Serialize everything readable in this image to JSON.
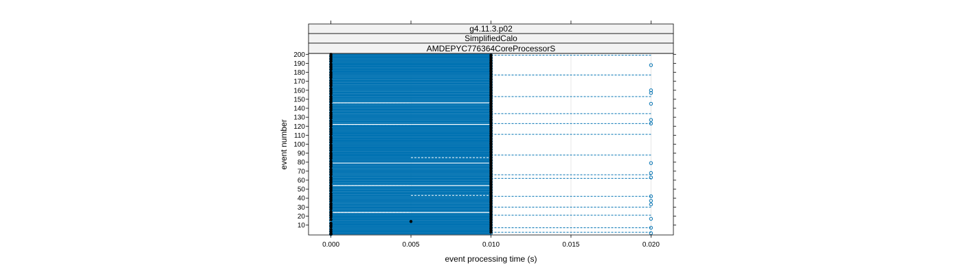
{
  "chart_data": {
    "type": "scatter",
    "strips": [
      "g4.11.3.p02",
      "SimplifiedCalo",
      "AMDEPYC776364CoreProcessorS"
    ],
    "xlabel": "event processing time (s)",
    "ylabel": "event number",
    "xlim": [
      -0.0014,
      0.0214
    ],
    "ylim": [
      -1,
      201
    ],
    "x_ticks": [
      0.0,
      0.005,
      0.01,
      0.015,
      0.02
    ],
    "x_tick_labels": [
      "0.000",
      "0.005",
      "0.010",
      "0.015",
      "0.020"
    ],
    "y_ticks": [
      10,
      20,
      30,
      40,
      50,
      60,
      70,
      80,
      90,
      100,
      110,
      120,
      130,
      140,
      150,
      160,
      170,
      180,
      190,
      200
    ],
    "y_tick_labels": [
      "10",
      "20",
      "30",
      "40",
      "50",
      "60",
      "70",
      "80",
      "90",
      "100",
      "110",
      "120",
      "130",
      "140",
      "150",
      "160",
      "170",
      "180",
      "190",
      "200"
    ],
    "grid": true,
    "colors": {
      "series": "#0072B2",
      "points": "#000000",
      "strip_bg": "#f2f2f2",
      "grid": "#e6e6e6"
    },
    "series": [
      {
        "name": "",
        "marker": "filled-black",
        "note_values": "filled points: event number -> processing time (s)",
        "points": [
          [
            0,
            0.0
          ],
          [
            1,
            0.0
          ],
          [
            2,
            0.01
          ],
          [
            3,
            0.0
          ],
          [
            4,
            0.01
          ],
          [
            5,
            0.0
          ],
          [
            6,
            0.01
          ],
          [
            7,
            0.01
          ],
          [
            8,
            0.0
          ],
          [
            9,
            0.01
          ],
          [
            10,
            0.0
          ],
          [
            11,
            0.01
          ],
          [
            12,
            0.0
          ],
          [
            13,
            0.01
          ],
          [
            14,
            0.005
          ],
          [
            15,
            0.01
          ],
          [
            16,
            0.0
          ],
          [
            17,
            0.01
          ],
          [
            18,
            0.01
          ],
          [
            19,
            0.0
          ],
          [
            20,
            0.01
          ],
          [
            21,
            0.0
          ],
          [
            22,
            0.01
          ],
          [
            23,
            0.0
          ],
          [
            24,
            0.01
          ],
          [
            25,
            0.0
          ],
          [
            26,
            0.01
          ],
          [
            27,
            0.01
          ],
          [
            28,
            0.0
          ],
          [
            29,
            0.01
          ],
          [
            30,
            0.0
          ],
          [
            31,
            0.01
          ],
          [
            32,
            0.0
          ],
          [
            33,
            0.01
          ],
          [
            34,
            0.0
          ],
          [
            35,
            0.01
          ],
          [
            36,
            0.01
          ],
          [
            37,
            0.0
          ],
          [
            38,
            0.01
          ],
          [
            39,
            0.0
          ],
          [
            40,
            0.01
          ],
          [
            41,
            0.0
          ],
          [
            42,
            0.01
          ],
          [
            43,
            0.0
          ],
          [
            44,
            0.01
          ],
          [
            45,
            0.0
          ],
          [
            46,
            0.01
          ],
          [
            47,
            0.01
          ],
          [
            48,
            0.0
          ],
          [
            49,
            0.01
          ],
          [
            50,
            0.0
          ],
          [
            51,
            0.01
          ],
          [
            52,
            0.0
          ],
          [
            53,
            0.01
          ],
          [
            54,
            0.0
          ],
          [
            55,
            0.01
          ],
          [
            56,
            0.01
          ],
          [
            57,
            0.0
          ],
          [
            58,
            0.01
          ],
          [
            59,
            0.0
          ],
          [
            60,
            0.01
          ],
          [
            61,
            0.0
          ],
          [
            62,
            0.01
          ],
          [
            63,
            0.0
          ],
          [
            64,
            0.01
          ],
          [
            65,
            0.01
          ],
          [
            66,
            0.0
          ],
          [
            67,
            0.01
          ],
          [
            68,
            0.0
          ],
          [
            69,
            0.01
          ],
          [
            70,
            0.0
          ],
          [
            71,
            0.01
          ],
          [
            72,
            0.0
          ],
          [
            73,
            0.01
          ],
          [
            74,
            0.01
          ],
          [
            75,
            0.0
          ],
          [
            76,
            0.01
          ],
          [
            77,
            0.0
          ],
          [
            78,
            0.01
          ],
          [
            79,
            0.0
          ],
          [
            80,
            0.01
          ],
          [
            81,
            0.0
          ],
          [
            82,
            0.01
          ],
          [
            83,
            0.01
          ],
          [
            84,
            0.0
          ],
          [
            85,
            0.01
          ],
          [
            86,
            0.0
          ],
          [
            87,
            0.01
          ],
          [
            88,
            0.0
          ],
          [
            89,
            0.01
          ],
          [
            90,
            0.0
          ],
          [
            91,
            0.01
          ],
          [
            92,
            0.01
          ],
          [
            93,
            0.0
          ],
          [
            94,
            0.01
          ],
          [
            95,
            0.0
          ],
          [
            96,
            0.01
          ],
          [
            97,
            0.0
          ],
          [
            98,
            0.01
          ],
          [
            99,
            0.0
          ],
          [
            100,
            0.01
          ],
          [
            101,
            0.01
          ],
          [
            102,
            0.0
          ],
          [
            103,
            0.01
          ],
          [
            104,
            0.0
          ],
          [
            105,
            0.01
          ],
          [
            106,
            0.0
          ],
          [
            107,
            0.01
          ],
          [
            108,
            0.0
          ],
          [
            109,
            0.01
          ],
          [
            110,
            0.01
          ],
          [
            111,
            0.0
          ],
          [
            112,
            0.01
          ],
          [
            113,
            0.0
          ],
          [
            114,
            0.01
          ],
          [
            115,
            0.0
          ],
          [
            116,
            0.01
          ],
          [
            117,
            0.0
          ],
          [
            118,
            0.01
          ],
          [
            119,
            0.01
          ],
          [
            120,
            0.0
          ],
          [
            121,
            0.01
          ],
          [
            122,
            0.0
          ],
          [
            123,
            0.01
          ],
          [
            124,
            0.0
          ],
          [
            125,
            0.01
          ],
          [
            126,
            0.0
          ],
          [
            127,
            0.01
          ],
          [
            128,
            0.01
          ],
          [
            129,
            0.0
          ],
          [
            130,
            0.01
          ],
          [
            131,
            0.0
          ],
          [
            132,
            0.01
          ],
          [
            133,
            0.0
          ],
          [
            134,
            0.01
          ],
          [
            135,
            0.0
          ],
          [
            136,
            0.01
          ],
          [
            137,
            0.01
          ],
          [
            138,
            0.0
          ],
          [
            139,
            0.01
          ],
          [
            140,
            0.0
          ],
          [
            141,
            0.01
          ],
          [
            142,
            0.0
          ],
          [
            143,
            0.01
          ],
          [
            144,
            0.0
          ],
          [
            145,
            0.01
          ],
          [
            146,
            0.01
          ],
          [
            147,
            0.0
          ],
          [
            148,
            0.01
          ],
          [
            149,
            0.0
          ],
          [
            150,
            0.01
          ],
          [
            151,
            0.0
          ],
          [
            152,
            0.01
          ],
          [
            153,
            0.0
          ],
          [
            154,
            0.01
          ],
          [
            155,
            0.01
          ],
          [
            156,
            0.0
          ],
          [
            157,
            0.01
          ],
          [
            158,
            0.0
          ],
          [
            159,
            0.01
          ],
          [
            160,
            0.0
          ],
          [
            161,
            0.01
          ],
          [
            162,
            0.0
          ],
          [
            163,
            0.01
          ],
          [
            164,
            0.01
          ],
          [
            165,
            0.0
          ],
          [
            166,
            0.01
          ],
          [
            167,
            0.0
          ],
          [
            168,
            0.01
          ],
          [
            169,
            0.0
          ],
          [
            170,
            0.01
          ],
          [
            171,
            0.0
          ],
          [
            172,
            0.01
          ],
          [
            173,
            0.01
          ],
          [
            174,
            0.0
          ],
          [
            175,
            0.01
          ],
          [
            176,
            0.0
          ],
          [
            177,
            0.01
          ],
          [
            178,
            0.0
          ],
          [
            179,
            0.01
          ],
          [
            180,
            0.0
          ],
          [
            181,
            0.01
          ],
          [
            182,
            0.01
          ],
          [
            183,
            0.0
          ],
          [
            184,
            0.01
          ],
          [
            185,
            0.0
          ],
          [
            186,
            0.01
          ],
          [
            187,
            0.0
          ],
          [
            188,
            0.01
          ],
          [
            189,
            0.0
          ],
          [
            190,
            0.01
          ],
          [
            191,
            0.01
          ],
          [
            192,
            0.0
          ],
          [
            193,
            0.01
          ],
          [
            194,
            0.0
          ],
          [
            195,
            0.01
          ],
          [
            196,
            0.0
          ],
          [
            197,
            0.01
          ],
          [
            198,
            0.0
          ],
          [
            199,
            0.01
          ],
          [
            200,
            0.0
          ]
        ]
      },
      {
        "name": "",
        "marker": "open-blue",
        "outliers_at_0_02": [
          1,
          7,
          17,
          33,
          37,
          42,
          63,
          68,
          79,
          123,
          127,
          145,
          157,
          160,
          188
        ],
        "dashed_to_0_02": [
          2,
          7,
          21,
          30,
          42,
          62,
          66,
          88,
          111,
          123,
          134,
          153,
          177,
          199
        ],
        "dashed_to_0_005": [
          24,
          54,
          79,
          122,
          146
        ],
        "dashed_from_0_005_to_0_01": [
          43,
          85
        ]
      }
    ]
  }
}
